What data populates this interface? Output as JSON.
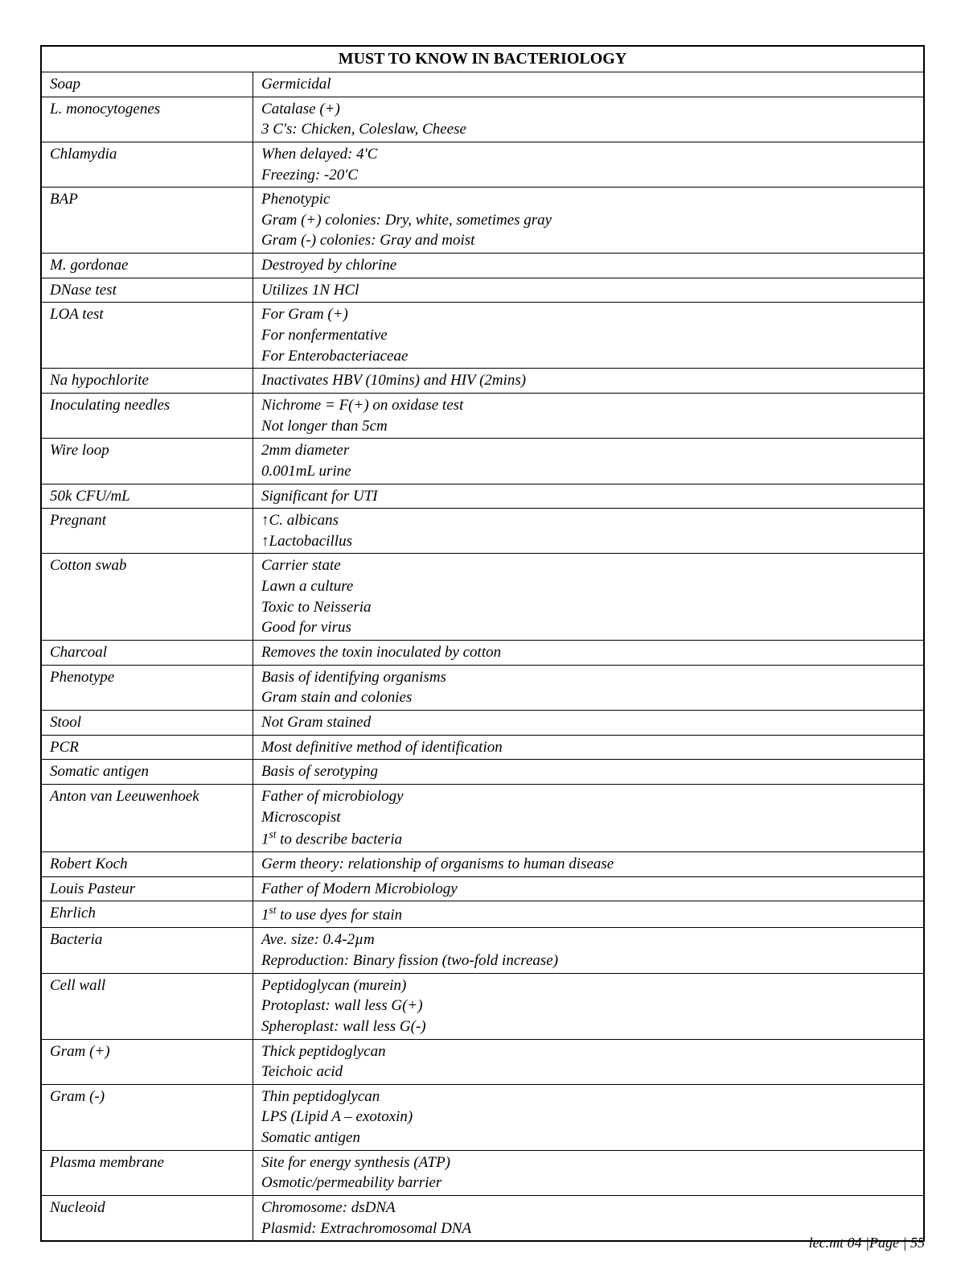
{
  "title": "MUST TO KNOW IN BACTERIOLOGY",
  "rows": [
    {
      "term": "Soap",
      "details": [
        "Germicidal"
      ]
    },
    {
      "term": "L. monocytogenes",
      "details": [
        "Catalase (+)",
        "3 C's: Chicken, Coleslaw, Cheese"
      ]
    },
    {
      "term": "Chlamydia",
      "details": [
        "When delayed: 4'C",
        "Freezing: -20'C"
      ]
    },
    {
      "term": "BAP",
      "details": [
        "Phenotypic",
        "Gram (+) colonies: Dry, white, sometimes gray",
        "Gram (-) colonies: Gray and moist"
      ]
    },
    {
      "term": "M. gordonae",
      "details": [
        "Destroyed by chlorine"
      ]
    },
    {
      "term": "DNase test",
      "details": [
        "Utilizes 1N HCl"
      ]
    },
    {
      "term": "LOA test",
      "details": [
        "For Gram (+)",
        "For nonfermentative",
        "For Enterobacteriaceae"
      ]
    },
    {
      "term": "Na hypochlorite",
      "details": [
        "Inactivates HBV (10mins) and HIV (2mins)"
      ]
    },
    {
      "term": "Inoculating needles",
      "details": [
        "Nichrome = F(+) on oxidase test",
        "Not longer than 5cm"
      ]
    },
    {
      "term": "Wire loop",
      "details": [
        "2mm diameter",
        "0.001mL urine"
      ]
    },
    {
      "term": "50k CFU/mL",
      "details": [
        "Significant for UTI"
      ]
    },
    {
      "term": "Pregnant",
      "details": [
        "↑C. albicans",
        "↑Lactobacillus"
      ]
    },
    {
      "term": "Cotton swab",
      "details": [
        "Carrier state",
        "Lawn a culture",
        "Toxic to Neisseria",
        "Good for virus"
      ]
    },
    {
      "term": "Charcoal",
      "details": [
        "Removes the toxin inoculated by cotton"
      ]
    },
    {
      "term": "Phenotype",
      "details": [
        "Basis of identifying organisms",
        "Gram stain and colonies"
      ]
    },
    {
      "term": "Stool",
      "details": [
        "Not Gram stained"
      ]
    },
    {
      "term": "PCR",
      "details": [
        "Most definitive method of identification"
      ]
    },
    {
      "term": "Somatic antigen",
      "details": [
        "Basis of serotyping"
      ]
    },
    {
      "term": "Anton van Leeuwenhoek",
      "details": [
        "Father of microbiology",
        "Microscopist",
        "1<sup>st</sup> to describe bacteria"
      ]
    },
    {
      "term": "Robert Koch",
      "details": [
        "Germ theory: relationship of organisms to human disease"
      ]
    },
    {
      "term": "Louis Pasteur",
      "details": [
        "Father of Modern Microbiology"
      ]
    },
    {
      "term": "Ehrlich",
      "details": [
        "1<sup>st</sup> to use dyes for stain"
      ]
    },
    {
      "term": "Bacteria",
      "details": [
        "Ave. size: 0.4-2µm",
        "Reproduction: Binary fission (two-fold increase)"
      ]
    },
    {
      "term": "Cell wall",
      "details": [
        "Peptidoglycan (murein)",
        "Protoplast: wall less G(+)",
        "Spheroplast: wall less G(-)"
      ]
    },
    {
      "term": "Gram (+)",
      "details": [
        "Thick peptidoglycan",
        "Teichoic acid"
      ]
    },
    {
      "term": "Gram (-)",
      "details": [
        "Thin peptidoglycan",
        "LPS (Lipid A – exotoxin)",
        "Somatic antigen"
      ]
    },
    {
      "term": "Plasma membrane",
      "details": [
        "Site for energy synthesis (ATP)",
        "Osmotic/permeability barrier"
      ]
    },
    {
      "term": "Nucleoid",
      "details": [
        "Chromosome: dsDNA",
        "Plasmid: Extrachromosomal DNA"
      ]
    }
  ],
  "footer": "lec.mt 04 |Page | 55"
}
